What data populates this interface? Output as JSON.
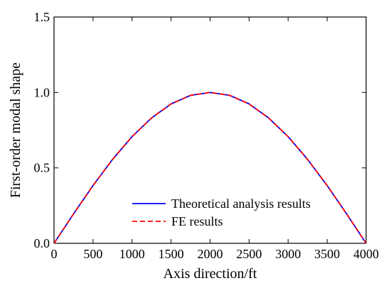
{
  "chart_data": {
    "type": "line",
    "title": "",
    "xlabel": "Axis direction/ft",
    "ylabel": "First-order modal shape",
    "xlim": [
      0,
      4000
    ],
    "ylim": [
      0,
      1.5
    ],
    "xticks": [
      0,
      500,
      1000,
      1500,
      2000,
      2500,
      3000,
      3500,
      4000
    ],
    "yticks": [
      0.0,
      0.5,
      1.0,
      1.5
    ],
    "xtick_labels": [
      "0",
      "500",
      "1000",
      "1500",
      "2000",
      "2500",
      "3000",
      "3500",
      "4000"
    ],
    "ytick_labels": [
      "0.0",
      "0.5",
      "1.0",
      "1.5"
    ],
    "grid": false,
    "legend_position": "bottom-center",
    "x": [
      0,
      250,
      500,
      750,
      1000,
      1250,
      1500,
      1750,
      2000,
      2250,
      2500,
      2750,
      3000,
      3250,
      3500,
      3750,
      4000
    ],
    "series": [
      {
        "name": "Theoretical analysis results",
        "color": "#0000ff",
        "line_style": "solid",
        "values": [
          0.0,
          0.195,
          0.383,
          0.556,
          0.707,
          0.831,
          0.924,
          0.981,
          1.0,
          0.981,
          0.924,
          0.831,
          0.707,
          0.556,
          0.383,
          0.195,
          0.0
        ]
      },
      {
        "name": "FE results",
        "color": "#ff0000",
        "line_style": "dashed",
        "values": [
          0.0,
          0.195,
          0.383,
          0.556,
          0.707,
          0.831,
          0.924,
          0.981,
          1.0,
          0.981,
          0.924,
          0.831,
          0.707,
          0.556,
          0.383,
          0.195,
          0.0
        ]
      }
    ]
  }
}
